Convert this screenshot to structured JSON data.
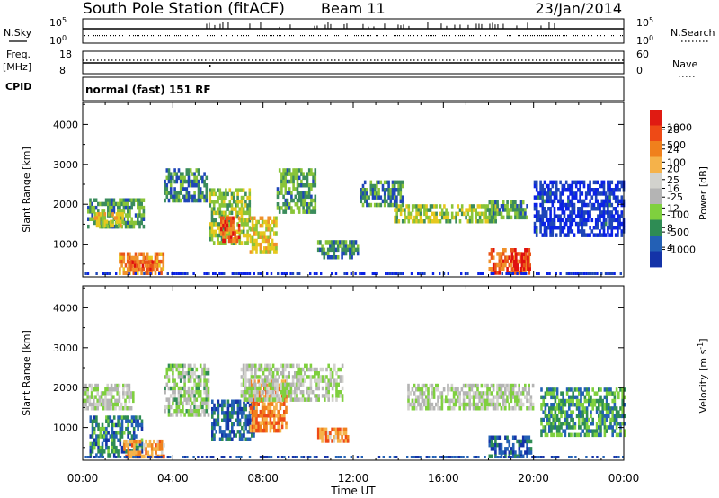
{
  "header": {
    "station": "South Pole Station (fitACF)",
    "beam": "Beam 11",
    "date": "23/Jan/2014"
  },
  "panels": {
    "nsky_label": "N.Sky",
    "nsearch_label": "N.Search",
    "freq_label_1": "Freq.",
    "freq_label_2": "[MHz]",
    "nave_label": "Nave",
    "cpid_label": "CPID",
    "cpid_value": "normal (fast) 151 RF",
    "nsky_tick_top": "10^5",
    "nsky_tick_bottom": "10^0",
    "nsearch_tick_top": "10^5",
    "nsearch_tick_bottom": "10^0",
    "freq_tick_top": "18",
    "freq_tick_bottom": "8",
    "nave_tick_top": "60",
    "nave_tick_bottom": "0"
  },
  "colors": {
    "power_scale": [
      "#0a22e6",
      "#1f46b8",
      "#3b8c5c",
      "#89c438",
      "#e6c81e",
      "#f0912a",
      "#ea5519",
      "#e01010"
    ],
    "velocity_scale": [
      "#e01b12",
      "#ee4a16",
      "#f0801c",
      "#f5b24a",
      "#d2d2cd",
      "#b4b4b4",
      "#7fd03e",
      "#2e8c54",
      "#2360b5",
      "#1433a8"
    ]
  },
  "chart_data": [
    {
      "type": "heatmap",
      "name": "Power",
      "title": "",
      "xlabel": "Time UT",
      "ylabel": "Slant Range [km]",
      "xlim": [
        "00:00",
        "00:00"
      ],
      "ylim": [
        180,
        4550
      ],
      "x_ticks": [
        "00:00",
        "04:00",
        "08:00",
        "12:00",
        "16:00",
        "20:00",
        "00:00"
      ],
      "y_ticks": [
        1000,
        2000,
        3000,
        4000
      ],
      "colorbar_label": "Power [dB]",
      "colorbar_ticks": [
        4,
        8,
        12,
        16,
        20,
        24,
        28
      ],
      "regions": [
        {
          "t0": 0.2,
          "t1": 2.7,
          "r0": 1450,
          "r1": 2150,
          "level": 0.35
        },
        {
          "t0": 0.5,
          "t1": 1.8,
          "r0": 1500,
          "r1": 1800,
          "level": 0.55
        },
        {
          "t0": 1.6,
          "t1": 3.6,
          "r0": 300,
          "r1": 800,
          "level": 0.7
        },
        {
          "t0": 2.0,
          "t1": 3.3,
          "r0": 400,
          "r1": 600,
          "level": 0.78
        },
        {
          "t0": 3.6,
          "t1": 5.5,
          "r0": 2100,
          "r1": 2900,
          "level": 0.3
        },
        {
          "t0": 5.6,
          "t1": 7.4,
          "r0": 1000,
          "r1": 2400,
          "level": 0.45
        },
        {
          "t0": 6.1,
          "t1": 6.9,
          "r0": 1100,
          "r1": 1700,
          "level": 0.8
        },
        {
          "t0": 7.4,
          "t1": 8.6,
          "r0": 800,
          "r1": 1700,
          "level": 0.55
        },
        {
          "t0": 8.6,
          "t1": 10.3,
          "r0": 1800,
          "r1": 2900,
          "level": 0.35
        },
        {
          "t0": 10.4,
          "t1": 12.2,
          "r0": 700,
          "r1": 1100,
          "level": 0.3
        },
        {
          "t0": 12.3,
          "t1": 14.2,
          "r0": 2000,
          "r1": 2600,
          "level": 0.3
        },
        {
          "t0": 13.8,
          "t1": 18.4,
          "r0": 1550,
          "r1": 2000,
          "level": 0.45
        },
        {
          "t0": 18.0,
          "t1": 19.8,
          "r0": 300,
          "r1": 900,
          "level": 0.78
        },
        {
          "t0": 19.0,
          "t1": 19.8,
          "r0": 350,
          "r1": 800,
          "level": 0.96
        },
        {
          "t0": 18.0,
          "t1": 19.7,
          "r0": 1700,
          "r1": 2100,
          "level": 0.35
        },
        {
          "t0": 20.0,
          "t1": 24.0,
          "r0": 1200,
          "r1": 2600,
          "level": 0.12
        }
      ]
    },
    {
      "type": "heatmap",
      "name": "Velocity",
      "title": "",
      "xlabel": "Time UT",
      "ylabel": "Slant Range [km]",
      "xlim": [
        "00:00",
        "00:00"
      ],
      "ylim": [
        180,
        4550
      ],
      "x_ticks": [
        "00:00",
        "04:00",
        "08:00",
        "12:00",
        "16:00",
        "20:00",
        "00:00"
      ],
      "y_ticks": [
        1000,
        2000,
        3000,
        4000
      ],
      "colorbar_label": "Velocity [m s^-1]",
      "colorbar_ticks": [
        1000,
        500,
        100,
        25,
        -25,
        -100,
        -500,
        -1000
      ],
      "regions": [
        {
          "t0": 0.0,
          "t1": 2.2,
          "r0": 1500,
          "r1": 2100,
          "level": 0.45
        },
        {
          "t0": 0.3,
          "t1": 2.6,
          "r0": 300,
          "r1": 1300,
          "level": 0.2
        },
        {
          "t0": 1.8,
          "t1": 3.6,
          "r0": 300,
          "r1": 700,
          "level": 0.7
        },
        {
          "t0": 3.6,
          "t1": 5.6,
          "r0": 1300,
          "r1": 2600,
          "level": 0.4
        },
        {
          "t0": 5.7,
          "t1": 7.6,
          "r0": 700,
          "r1": 1700,
          "level": 0.15
        },
        {
          "t0": 7.4,
          "t1": 9.0,
          "r0": 900,
          "r1": 2200,
          "level": 0.75
        },
        {
          "t0": 7.0,
          "t1": 11.5,
          "r0": 1700,
          "r1": 2600,
          "level": 0.45
        },
        {
          "t0": 10.4,
          "t1": 11.8,
          "r0": 700,
          "r1": 1000,
          "level": 0.72
        },
        {
          "t0": 14.4,
          "t1": 20.0,
          "r0": 1500,
          "r1": 2100,
          "level": 0.45
        },
        {
          "t0": 18.0,
          "t1": 19.9,
          "r0": 300,
          "r1": 800,
          "level": 0.14
        },
        {
          "t0": 20.3,
          "t1": 24.0,
          "r0": 800,
          "r1": 2000,
          "level": 0.25
        }
      ]
    }
  ]
}
